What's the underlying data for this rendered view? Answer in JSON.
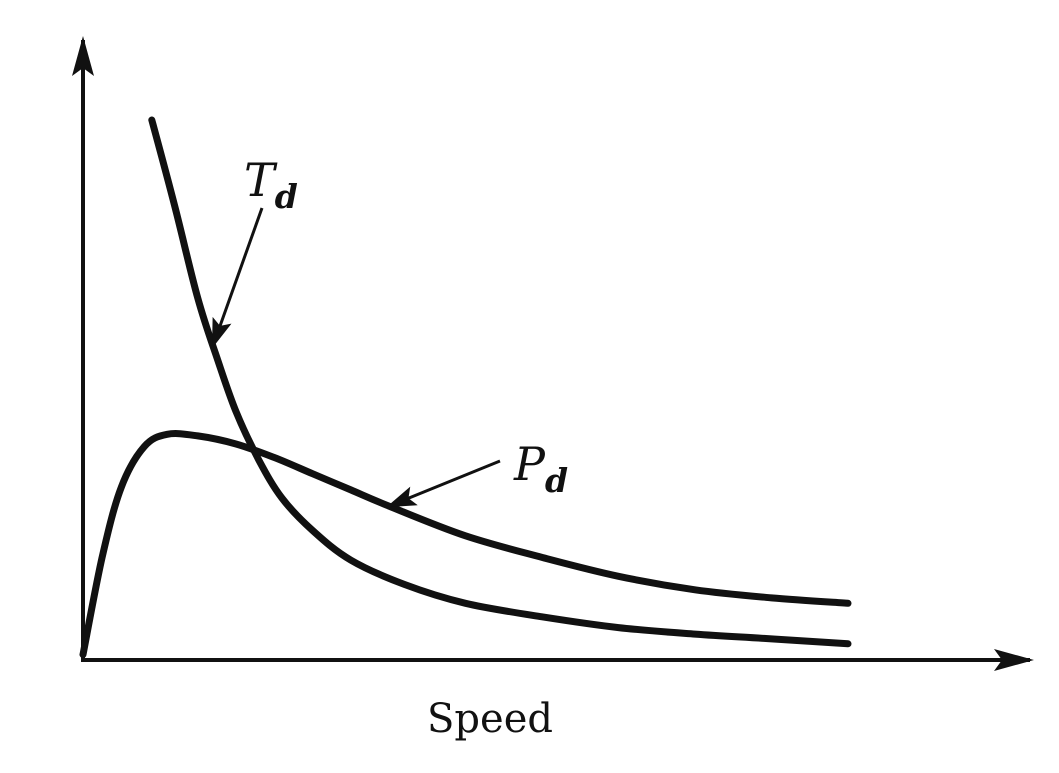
{
  "chart_data": {
    "type": "line",
    "title": "",
    "xlabel": "Speed",
    "ylabel": "",
    "xlim": [
      0,
      10
    ],
    "ylim": [
      0,
      10
    ],
    "grid": false,
    "ticks": false,
    "series": [
      {
        "name": "T",
        "subscript": "d",
        "x": [
          0.9,
          1.2,
          1.5,
          1.75,
          2.0,
          2.3,
          2.6,
          3.0,
          3.5,
          4.2,
          5.0,
          6.0,
          7.0,
          8.0,
          8.9,
          10.0
        ],
        "y": [
          10.0,
          8.4,
          6.7,
          5.6,
          4.6,
          3.7,
          3.0,
          2.4,
          1.85,
          1.4,
          1.05,
          0.8,
          0.6,
          0.48,
          0.4,
          0.3
        ]
      },
      {
        "name": "P",
        "subscript": "d",
        "x": [
          0.0,
          0.25,
          0.5,
          0.8,
          1.1,
          1.5,
          2.0,
          2.5,
          3.0,
          3.5,
          4.0,
          5.0,
          6.0,
          7.0,
          8.0,
          9.0,
          10.0
        ],
        "y": [
          0.1,
          1.9,
          3.2,
          3.95,
          4.18,
          4.15,
          4.0,
          3.75,
          3.45,
          3.15,
          2.85,
          2.3,
          1.9,
          1.55,
          1.3,
          1.15,
          1.05
        ]
      }
    ],
    "annotations": [
      {
        "series": 0,
        "text": "T",
        "subscript": "d",
        "arrow_to_x": 1.7
      },
      {
        "series": 1,
        "text": "P",
        "subscript": "d",
        "arrow_to_x": 4.0
      }
    ],
    "colors": {
      "ink": "#111111",
      "background": "#ffffff"
    }
  }
}
